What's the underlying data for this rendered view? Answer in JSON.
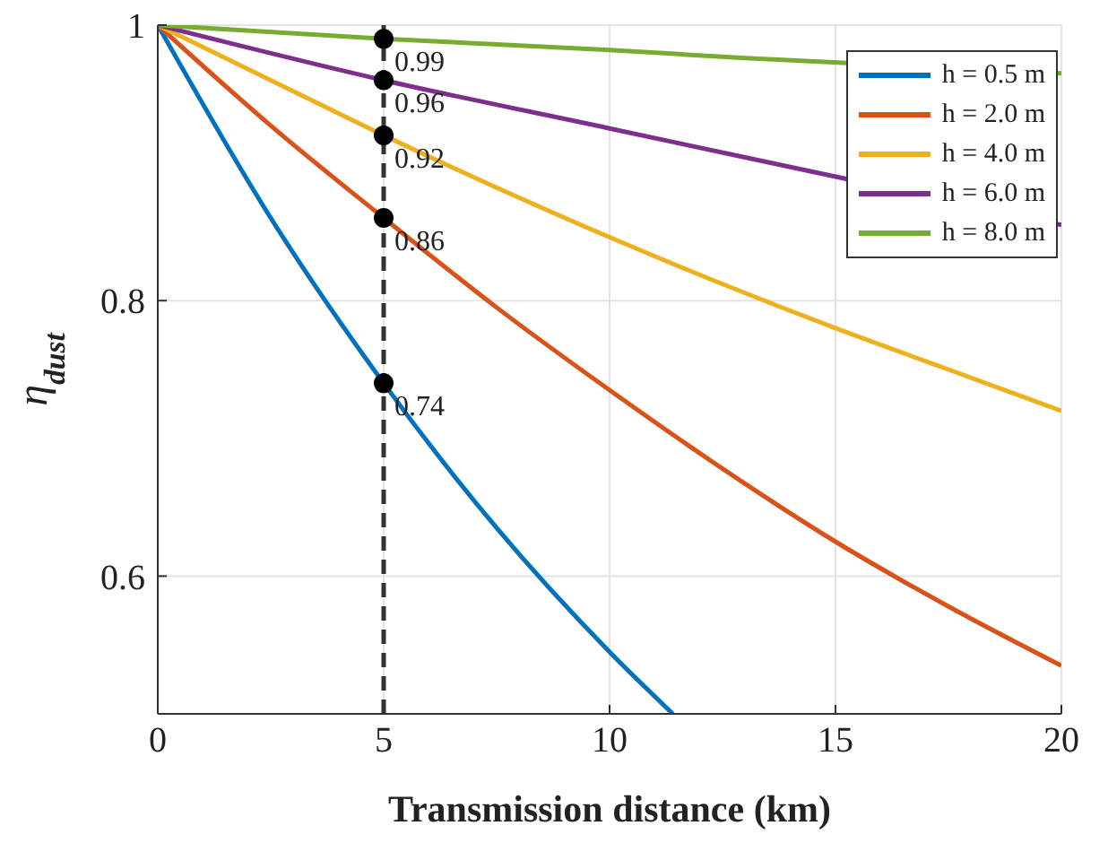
{
  "chart_data": {
    "type": "line",
    "xlabel": "Transmission distance (km)",
    "ylabel": "η$_{dust}$",
    "xlim": [
      0,
      20
    ],
    "ylim": [
      0.5,
      1
    ],
    "xticks": [
      0,
      5,
      10,
      15,
      20
    ],
    "yticks": [
      0.6,
      0.8,
      1
    ],
    "grid": true,
    "legend": "top right",
    "marker": "none",
    "line_style": "solid",
    "series": [
      {
        "name": "h = 0.5 m",
        "color": "#0072bd",
        "x": [
          0,
          2.5,
          5,
          7.5,
          10,
          11.4
        ],
        "values": [
          1,
          0.86,
          0.74,
          0.635,
          0.545,
          0.5
        ]
      },
      {
        "name": "h = 2.0 m",
        "color": "#d95319",
        "x": [
          0,
          2.5,
          5,
          7.5,
          10,
          12.5,
          15,
          17.5,
          20
        ],
        "values": [
          1,
          0.927,
          0.86,
          0.795,
          0.735,
          0.678,
          0.625,
          0.578,
          0.535
        ]
      },
      {
        "name": "h = 4.0 m",
        "color": "#edb120",
        "x": [
          0,
          2.5,
          5,
          7.5,
          10,
          12.5,
          15,
          17.5,
          20
        ],
        "values": [
          1,
          0.96,
          0.92,
          0.882,
          0.846,
          0.812,
          0.78,
          0.75,
          0.72
        ]
      },
      {
        "name": "h = 6.0 m",
        "color": "#7e2f8e",
        "x": [
          0,
          5,
          10,
          13,
          20
        ],
        "values": [
          1,
          0.96,
          0.925,
          0.904,
          0.855
        ]
      },
      {
        "name": "h = 8.0 m",
        "color": "#77ac30",
        "x": [
          0,
          5,
          10,
          13,
          20
        ],
        "values": [
          1,
          0.99,
          0.982,
          0.976,
          0.965
        ]
      },
      {
        "type": "scatter",
        "color": "#000000",
        "marker": "circle",
        "x": [
          5,
          5,
          5,
          5,
          5
        ],
        "values": [
          0.99,
          0.96,
          0.92,
          0.86,
          0.74
        ],
        "value_labels": [
          "0.99",
          "0.96",
          "0.92",
          "0.86",
          "0.74"
        ]
      }
    ],
    "ref_lines": [
      {
        "axis": "x",
        "value": 5,
        "color": "#333333",
        "line_style": "dashed"
      }
    ]
  }
}
